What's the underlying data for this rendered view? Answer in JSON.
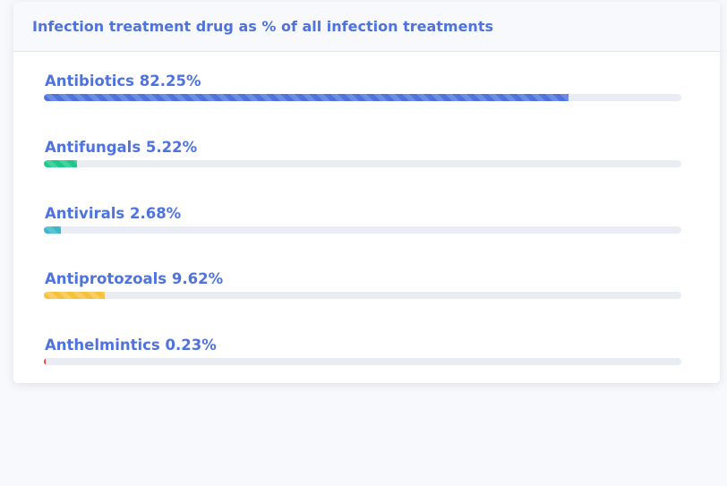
{
  "card": {
    "title": "Infection treatment drug as % of all infection treatments"
  },
  "bars": [
    {
      "label": "Antibiotics 82.25%",
      "value": 82.25,
      "color": "#4e73df"
    },
    {
      "label": "Antifungals 5.22%",
      "value": 5.22,
      "color": "#1cc88a"
    },
    {
      "label": "Antivirals 2.68%",
      "value": 2.68,
      "color": "#36b9cc"
    },
    {
      "label": "Antiprotozoals 9.62%",
      "value": 9.62,
      "color": "#f6c23e"
    },
    {
      "label": "Anthelmintics 0.23%",
      "value": 0.23,
      "color": "#e74a3b"
    }
  ]
}
